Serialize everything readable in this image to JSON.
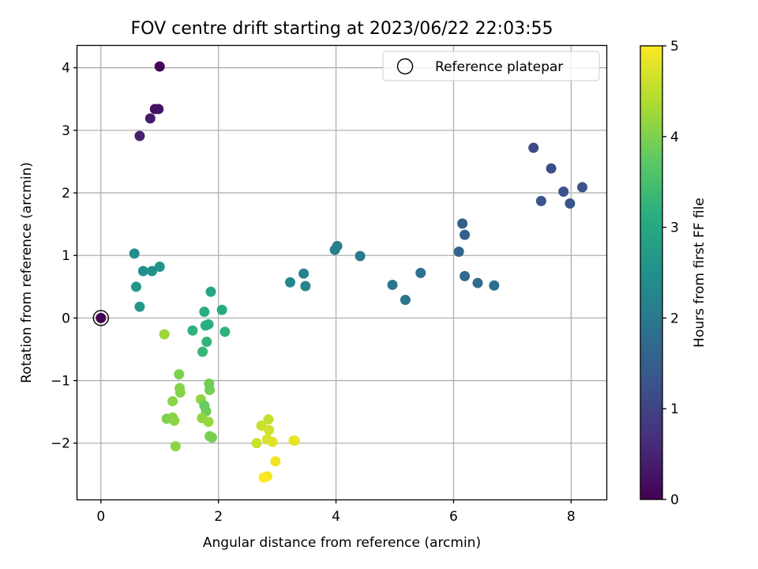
{
  "chart_data": {
    "type": "scatter",
    "title": "FOV centre drift starting at 2023/06/22 22:03:55",
    "xlabel": "Angular distance from reference (arcmin)",
    "ylabel": "Rotation from reference (arcmin)",
    "xlim": [
      -0.4,
      8.6
    ],
    "ylim": [
      -2.9,
      4.35
    ],
    "xticks": [
      0,
      2,
      4,
      6,
      8
    ],
    "yticks": [
      -2,
      -1,
      0,
      1,
      2,
      3,
      4
    ],
    "x_tick_labels": [
      "0",
      "2",
      "4",
      "6",
      "8"
    ],
    "y_tick_labels": [
      "−2",
      "−1",
      "0",
      "1",
      "2",
      "3",
      "4"
    ],
    "grid": true,
    "legend": {
      "position": "top-right",
      "entries": [
        "Reference platepar"
      ]
    },
    "reference_point": {
      "x": 0,
      "y": 0
    },
    "colorbar": {
      "label": "Hours from first FF file",
      "range": [
        0,
        5
      ],
      "ticks": [
        "0",
        "1",
        "2",
        "3",
        "4",
        "5"
      ],
      "colormap": "viridis"
    },
    "points": [
      {
        "x": 0.0,
        "y": 0.0,
        "c": 0.0
      },
      {
        "x": 1.0,
        "y": 4.02,
        "c": 0.05
      },
      {
        "x": 0.92,
        "y": 3.34,
        "c": 0.2
      },
      {
        "x": 0.98,
        "y": 3.34,
        "c": 0.25
      },
      {
        "x": 0.84,
        "y": 3.19,
        "c": 0.35
      },
      {
        "x": 0.66,
        "y": 2.91,
        "c": 0.45
      },
      {
        "x": 7.36,
        "y": 2.72,
        "c": 1.15
      },
      {
        "x": 7.66,
        "y": 2.39,
        "c": 1.2
      },
      {
        "x": 8.19,
        "y": 2.09,
        "c": 1.25
      },
      {
        "x": 7.87,
        "y": 2.02,
        "c": 1.25
      },
      {
        "x": 7.49,
        "y": 1.87,
        "c": 1.3
      },
      {
        "x": 7.98,
        "y": 1.83,
        "c": 1.3
      },
      {
        "x": 6.15,
        "y": 1.51,
        "c": 1.5
      },
      {
        "x": 6.19,
        "y": 1.33,
        "c": 1.55
      },
      {
        "x": 6.09,
        "y": 1.06,
        "c": 1.6
      },
      {
        "x": 6.19,
        "y": 0.67,
        "c": 1.7
      },
      {
        "x": 6.41,
        "y": 0.56,
        "c": 1.75
      },
      {
        "x": 6.69,
        "y": 0.52,
        "c": 1.8
      },
      {
        "x": 5.44,
        "y": 0.72,
        "c": 1.85
      },
      {
        "x": 5.18,
        "y": 0.29,
        "c": 1.9
      },
      {
        "x": 4.96,
        "y": 0.53,
        "c": 1.95
      },
      {
        "x": 4.41,
        "y": 0.99,
        "c": 2.05
      },
      {
        "x": 4.02,
        "y": 1.15,
        "c": 2.1
      },
      {
        "x": 3.98,
        "y": 1.09,
        "c": 2.15
      },
      {
        "x": 3.45,
        "y": 0.71,
        "c": 2.2
      },
      {
        "x": 3.22,
        "y": 0.57,
        "c": 2.25
      },
      {
        "x": 3.48,
        "y": 0.51,
        "c": 2.25
      },
      {
        "x": 0.57,
        "y": 1.03,
        "c": 2.4
      },
      {
        "x": 0.72,
        "y": 0.75,
        "c": 2.45
      },
      {
        "x": 0.87,
        "y": 0.75,
        "c": 2.5
      },
      {
        "x": 1.0,
        "y": 0.82,
        "c": 2.55
      },
      {
        "x": 0.6,
        "y": 0.5,
        "c": 2.6
      },
      {
        "x": 0.66,
        "y": 0.18,
        "c": 2.65
      },
      {
        "x": 1.87,
        "y": 0.42,
        "c": 3.0
      },
      {
        "x": 2.06,
        "y": 0.13,
        "c": 3.05
      },
      {
        "x": 1.76,
        "y": 0.1,
        "c": 3.1
      },
      {
        "x": 1.83,
        "y": -0.1,
        "c": 3.15
      },
      {
        "x": 1.78,
        "y": -0.12,
        "c": 3.15
      },
      {
        "x": 1.56,
        "y": -0.2,
        "c": 3.2
      },
      {
        "x": 2.11,
        "y": -0.22,
        "c": 3.2
      },
      {
        "x": 1.8,
        "y": -0.38,
        "c": 3.25
      },
      {
        "x": 1.73,
        "y": -0.54,
        "c": 3.3
      },
      {
        "x": 1.08,
        "y": -0.26,
        "c": 4.25
      },
      {
        "x": 1.33,
        "y": -0.9,
        "c": 4.0
      },
      {
        "x": 1.84,
        "y": -1.05,
        "c": 3.9
      },
      {
        "x": 1.85,
        "y": -1.15,
        "c": 3.9
      },
      {
        "x": 1.34,
        "y": -1.12,
        "c": 4.05
      },
      {
        "x": 1.35,
        "y": -1.19,
        "c": 4.05
      },
      {
        "x": 1.22,
        "y": -1.33,
        "c": 4.1
      },
      {
        "x": 1.7,
        "y": -1.3,
        "c": 4.15
      },
      {
        "x": 1.76,
        "y": -1.4,
        "c": 3.8
      },
      {
        "x": 1.79,
        "y": -1.49,
        "c": 3.85
      },
      {
        "x": 1.12,
        "y": -1.61,
        "c": 4.0
      },
      {
        "x": 1.22,
        "y": -1.59,
        "c": 4.05
      },
      {
        "x": 1.25,
        "y": -1.64,
        "c": 4.1
      },
      {
        "x": 1.72,
        "y": -1.6,
        "c": 4.15
      },
      {
        "x": 1.83,
        "y": -1.66,
        "c": 4.2
      },
      {
        "x": 1.85,
        "y": -1.89,
        "c": 3.95
      },
      {
        "x": 1.89,
        "y": -1.91,
        "c": 3.95
      },
      {
        "x": 1.27,
        "y": -2.05,
        "c": 4.1
      },
      {
        "x": 2.85,
        "y": -1.62,
        "c": 4.55
      },
      {
        "x": 2.73,
        "y": -1.72,
        "c": 4.6
      },
      {
        "x": 2.86,
        "y": -1.79,
        "c": 4.65
      },
      {
        "x": 2.83,
        "y": -1.94,
        "c": 4.7
      },
      {
        "x": 2.65,
        "y": -2.0,
        "c": 4.6
      },
      {
        "x": 2.92,
        "y": -1.98,
        "c": 4.75
      },
      {
        "x": 3.28,
        "y": -1.96,
        "c": 4.8
      },
      {
        "x": 3.3,
        "y": -1.96,
        "c": 4.85
      },
      {
        "x": 2.97,
        "y": -2.29,
        "c": 4.9
      },
      {
        "x": 2.83,
        "y": -2.53,
        "c": 4.95
      },
      {
        "x": 2.77,
        "y": -2.55,
        "c": 5.0
      }
    ]
  }
}
